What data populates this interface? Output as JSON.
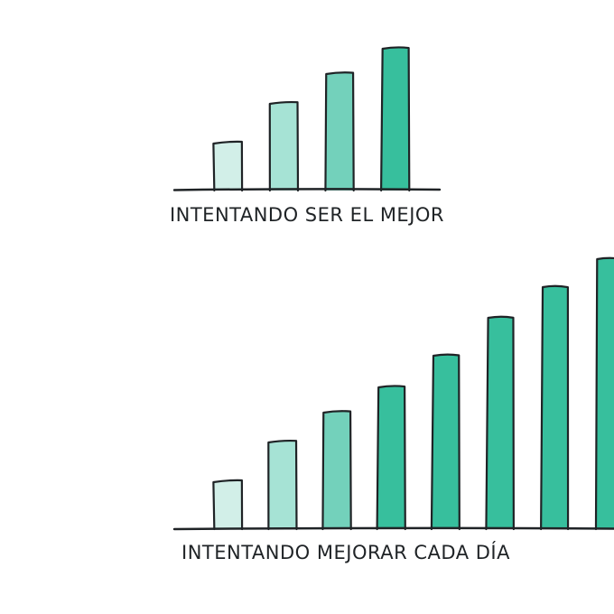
{
  "chart_data": [
    {
      "type": "bar",
      "caption": "INTENTANDO SER EL MEJOR",
      "values": [
        52,
        96,
        129,
        157
      ],
      "colors": [
        "#d2efe8",
        "#a6e3d5",
        "#73d1bb",
        "#37bf9d"
      ]
    },
    {
      "type": "bar",
      "caption": "INTENTANDO MEJORAR CADA DÍA",
      "values": [
        52,
        96,
        129,
        157,
        192,
        234,
        268,
        299
      ],
      "colors": [
        "#d2efe8",
        "#a6e3d5",
        "#73d1bb",
        "#37bf9d",
        "#37bf9d",
        "#37bf9d",
        "#37bf9d",
        "#37bf9d"
      ]
    }
  ],
  "style": {
    "outline_color": "#1f2326",
    "background": "#ffffff"
  }
}
